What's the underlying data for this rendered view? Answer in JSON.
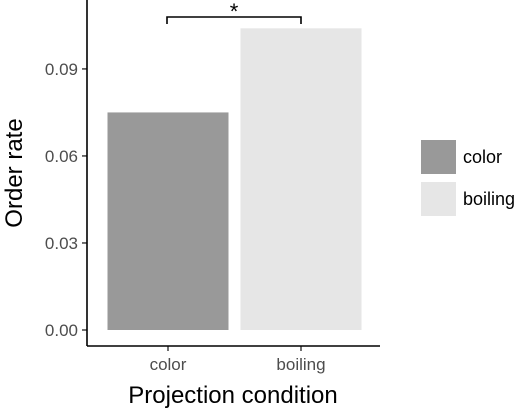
{
  "chart_data": {
    "type": "bar",
    "categories": [
      "color",
      "boiling"
    ],
    "values": [
      0.075,
      0.104
    ],
    "xlabel": "Projection condition",
    "ylabel": "Order rate",
    "ylim": [
      0,
      0.111
    ],
    "yticks": [
      "0.00",
      "0.03",
      "0.06",
      "0.09"
    ],
    "ytick_values": [
      0,
      0.03,
      0.06,
      0.09
    ],
    "colors": [
      "#999999",
      "#e6e6e6"
    ],
    "legend": {
      "placement": "right",
      "entries": [
        "color",
        "boiling"
      ]
    },
    "annotation": {
      "text": "*",
      "between": [
        "color",
        "boiling"
      ]
    },
    "grid": false
  }
}
